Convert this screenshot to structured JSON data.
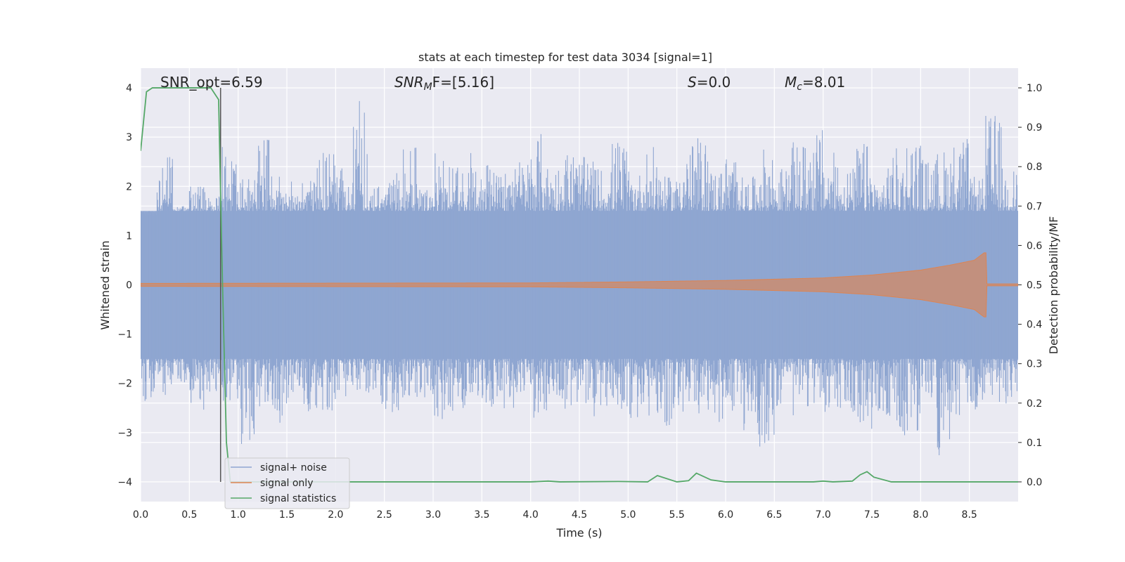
{
  "chart_data": {
    "type": "line",
    "title": "stats at each timestep for test data 3034 [signal=1]",
    "xlabel": "Time (s)",
    "ylabel": "Whitened strain",
    "y2label": "Detection probability/MF",
    "xlim": [
      0,
      9.0
    ],
    "ylim": [
      -4.4,
      4.4
    ],
    "y2lim": [
      -0.05,
      1.05
    ],
    "xticks": [
      "0.0",
      "0.5",
      "1.0",
      "1.5",
      "2.0",
      "2.5",
      "3.0",
      "3.5",
      "4.0",
      "4.5",
      "5.0",
      "5.5",
      "6.0",
      "6.5",
      "7.0",
      "7.5",
      "8.0",
      "8.5"
    ],
    "yticks": [
      "4",
      "3",
      "2",
      "1",
      "0",
      "−1",
      "−2",
      "−3",
      "−4"
    ],
    "y2ticks": [
      "1.0",
      "0.9",
      "0.8",
      "0.7",
      "0.6",
      "0.5",
      "0.4",
      "0.3",
      "0.2",
      "0.1",
      "0.0"
    ],
    "grid": true,
    "legend_position": "lower-left",
    "annotations": {
      "snr_opt": "SNR_opt=6.59",
      "snr_mf_base": "SNR",
      "snr_mf_sub": "M",
      "snr_mf_rest": "F=[5.16]",
      "s_base": "S",
      "s_rest": "=0.0",
      "mc_base": "M",
      "mc_sub": "c",
      "mc_rest": "=8.01"
    },
    "vline_x": 0.82,
    "series": [
      {
        "name": "signal+ noise",
        "color": "#8fa6d1",
        "kind": "noise",
        "upper_envelope": [
          1.4,
          2.6,
          1.6,
          2.0,
          1.8,
          2.8,
          2.2,
          3.1,
          2.2,
          2.1,
          2.4,
          2.7,
          2.4,
          3.9,
          2.1,
          2.3,
          2.9,
          2.2,
          2.7,
          2.4,
          2.8,
          2.5,
          2.3,
          2.6,
          3.1,
          2.5,
          2.8,
          2.6,
          2.4,
          3.0,
          2.3,
          2.8,
          2.2,
          2.9,
          3.0,
          2.4,
          2.7,
          2.2,
          2.8,
          2.4,
          2.9,
          3.2,
          2.7,
          2.4,
          2.9,
          2.2,
          2.8,
          3.1,
          2.6,
          2.8,
          3.0,
          2.2,
          3.5,
          2.4
        ],
        "lower_envelope": [
          -2.4,
          -2.3,
          -2.0,
          -2.6,
          -2.2,
          -2.4,
          -3.5,
          -2.5,
          -2.8,
          -2.3,
          -2.6,
          -2.6,
          -2.3,
          -2.2,
          -2.5,
          -2.7,
          -2.4,
          -2.3,
          -2.8,
          -2.6,
          -2.4,
          -2.5,
          -2.6,
          -2.2,
          -2.7,
          -2.4,
          -2.6,
          -2.7,
          -2.5,
          -2.6,
          -2.8,
          -2.7,
          -3.2,
          -2.6,
          -2.8,
          -2.9,
          -2.6,
          -3.0,
          -3.3,
          -2.5,
          -2.7,
          -2.5,
          -2.6,
          -2.8,
          -3.0,
          -2.7,
          -3.0,
          -3.2,
          -2.5,
          -3.5,
          -2.8,
          -2.7,
          -2.4,
          -2.5
        ],
        "core_band": [
          -1.5,
          1.5
        ]
      },
      {
        "name": "signal only",
        "color": "#dd8452",
        "kind": "chirp",
        "amplitude_points": [
          [
            0.0,
            0.03
          ],
          [
            4.0,
            0.04
          ],
          [
            5.0,
            0.06
          ],
          [
            6.0,
            0.09
          ],
          [
            7.0,
            0.14
          ],
          [
            7.5,
            0.2
          ],
          [
            8.0,
            0.3
          ],
          [
            8.3,
            0.4
          ],
          [
            8.55,
            0.5
          ],
          [
            8.65,
            0.65
          ],
          [
            8.67,
            0.65
          ],
          [
            8.68,
            0.02
          ],
          [
            9.0,
            0.02
          ]
        ]
      },
      {
        "name": "signal statistics",
        "color": "#55a868",
        "kind": "probability",
        "x": [
          0.0,
          0.06,
          0.12,
          0.5,
          0.72,
          0.8,
          0.84,
          0.88,
          0.92,
          1.2,
          4.0,
          4.18,
          4.3,
          4.9,
          5.2,
          5.3,
          5.5,
          5.62,
          5.7,
          5.85,
          6.0,
          6.9,
          7.0,
          7.1,
          7.3,
          7.38,
          7.45,
          7.52,
          7.7,
          8.0,
          9.0
        ],
        "y": [
          0.84,
          0.99,
          1.0,
          1.0,
          1.0,
          0.97,
          0.5,
          0.1,
          0.0,
          0.0,
          0.0,
          0.002,
          0.0,
          0.001,
          0.0,
          0.016,
          0.0,
          0.003,
          0.022,
          0.005,
          0.0,
          0.0,
          0.002,
          0.0,
          0.002,
          0.018,
          0.026,
          0.012,
          0.0,
          0.0,
          0.0
        ]
      }
    ]
  }
}
